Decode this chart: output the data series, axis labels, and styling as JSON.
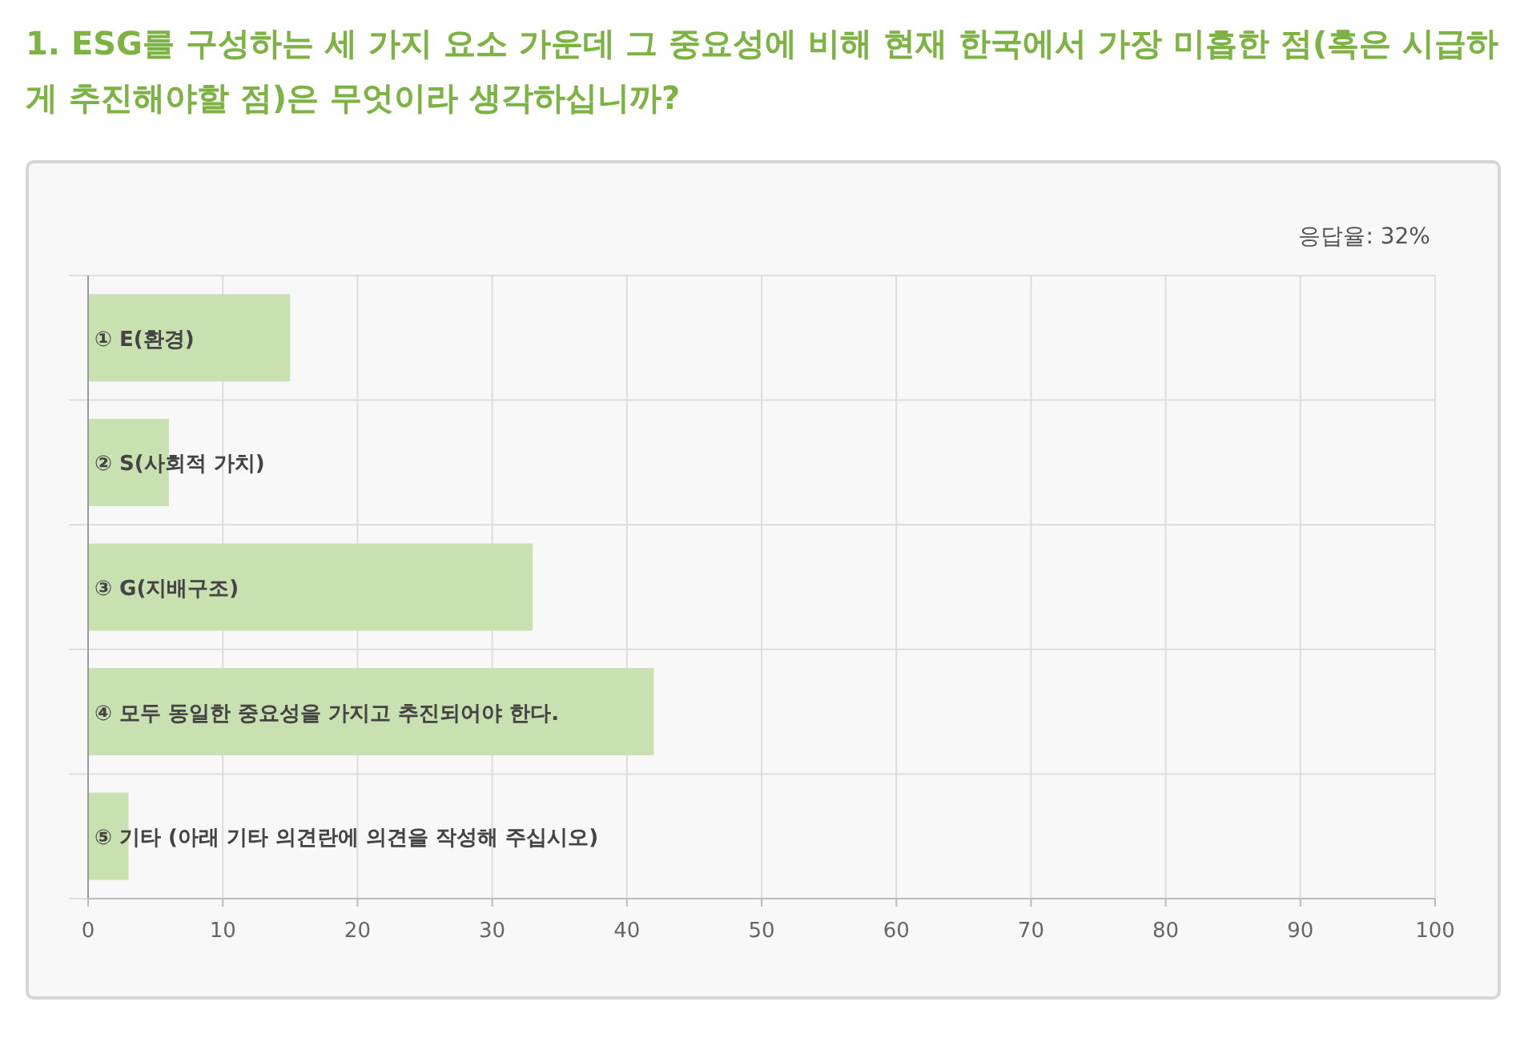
{
  "chart_data": {
    "type": "bar",
    "orientation": "horizontal",
    "title": "1. ESG를 구성하는 세 가지 요소 가운데 그 중요성에 비해 현재 한국에서 가장 미흡한 점(혹은 시급하게 추진해야할 점)은 무엇이라 생각하십니까?",
    "categories": [
      "① E(환경)",
      "② S(사회적 가치)",
      "③ G(지배구조)",
      "④ 모두 동일한 중요성을 가지고 추진되어야 한다.",
      "⑤ 기타 (아래 기타 의견란에 의견을 작성해 주십시오)"
    ],
    "values": [
      15,
      6,
      33,
      42,
      3
    ],
    "color": "#c9e0b1",
    "xlim": [
      0,
      100
    ],
    "xticks": [
      0,
      10,
      20,
      30,
      40,
      50,
      60,
      70,
      80,
      90,
      100
    ],
    "grid": true,
    "annotations": [
      "응답율: 32%"
    ]
  }
}
